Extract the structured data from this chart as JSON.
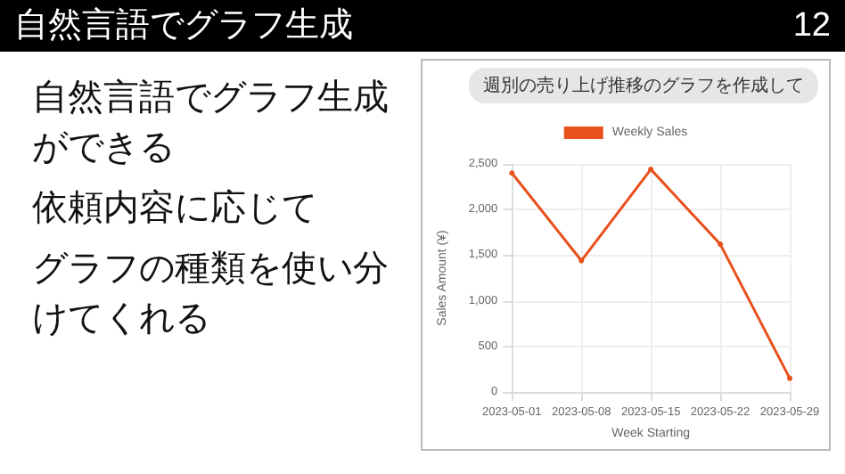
{
  "chart_data": {
    "type": "line",
    "title": "自然言語でグラフ生成",
    "annotations": [
      "12",
      "週別の売り上げ推移のグラフを作成して",
      "自然言語でグラフ生成ができる",
      "依頼内容に応じて",
      "グラフの種類を使い分けてくれる"
    ],
    "categories": [
      "2023-05-01",
      "2023-05-08",
      "2023-05-15",
      "2023-05-22",
      "2023-05-29"
    ],
    "series": [
      {
        "name": "Weekly Sales",
        "color": "#e8501c",
        "values": [
          2400,
          1440,
          2440,
          1620,
          150
        ]
      }
    ],
    "xlabel": "Week Starting",
    "ylabel": "Sales Amount (¥)",
    "ylim": [
      0,
      2500
    ],
    "yticks": [
      0,
      500,
      {
        "value": 1000,
        "label": "1,000"
      },
      {
        "value": 1500,
        "label": "1,500"
      },
      {
        "value": 2000,
        "label": "2,000"
      },
      {
        "value": 2500,
        "label": "2,500"
      }
    ],
    "grid": true,
    "legend": "top",
    "marker": "circle",
    "line_style": "solid"
  }
}
